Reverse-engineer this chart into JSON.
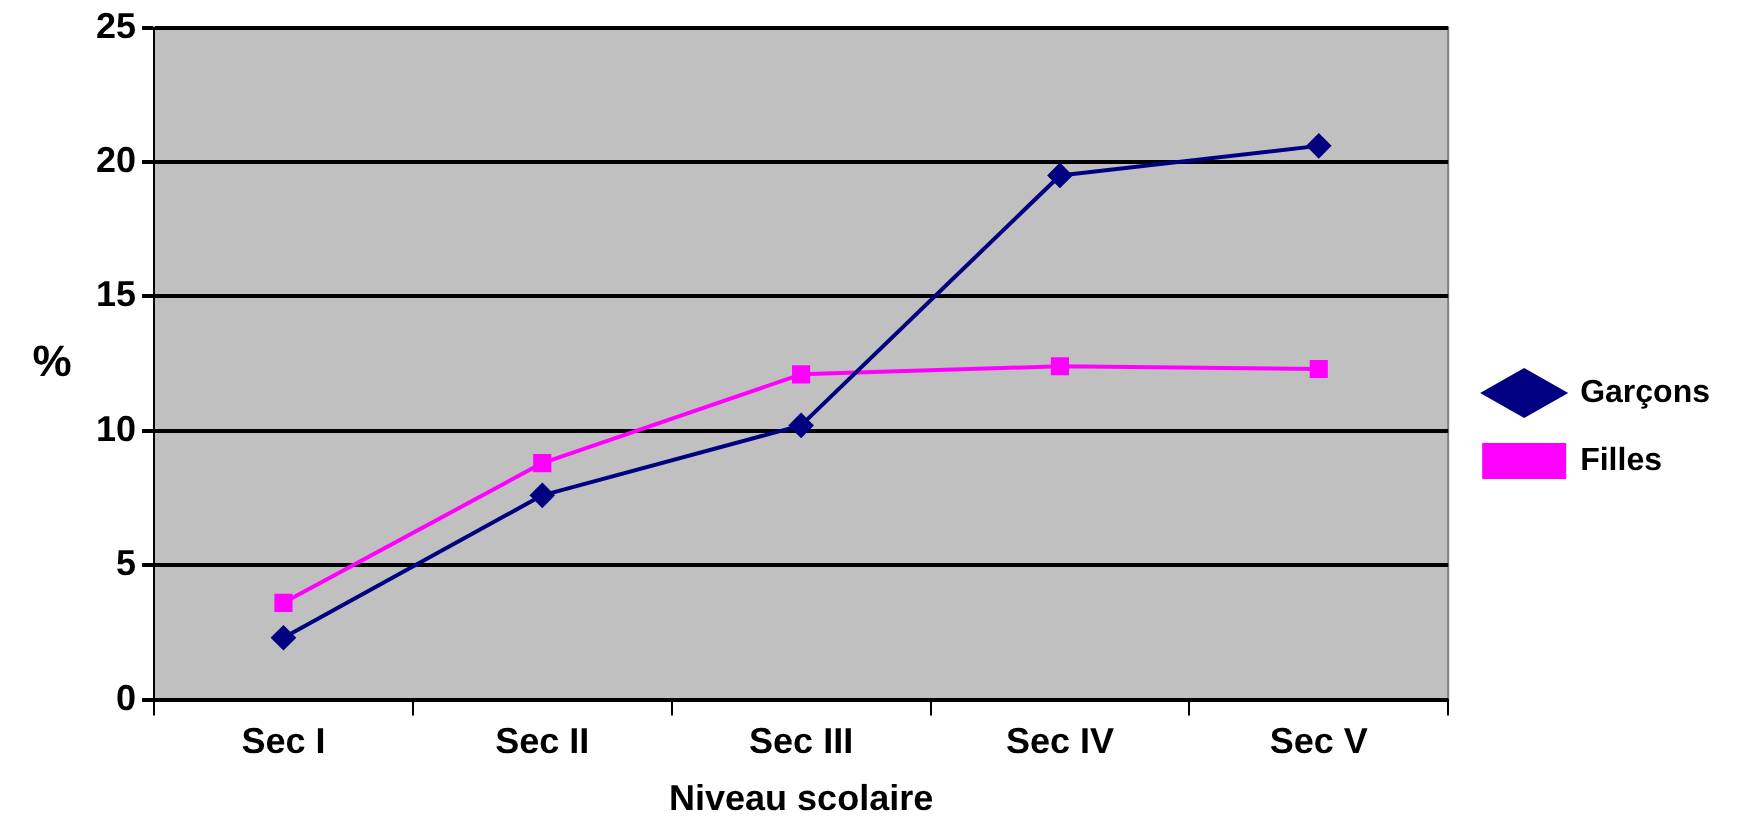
{
  "chart_data": {
    "type": "line",
    "xlabel": "Niveau scolaire",
    "ylabel": "%",
    "categories": [
      "Sec I",
      "Sec II",
      "Sec III",
      "Sec IV",
      "Sec V"
    ],
    "series": [
      {
        "name": "Garçons",
        "color": "#000080",
        "marker": "diamond",
        "values": [
          2.3,
          7.6,
          10.2,
          19.5,
          20.6
        ]
      },
      {
        "name": "Filles",
        "color": "#ff00ff",
        "marker": "square",
        "values": [
          3.6,
          8.8,
          12.1,
          12.4,
          12.3
        ]
      }
    ],
    "ylim": [
      0,
      25
    ],
    "yticks": [
      0,
      5,
      10,
      15,
      20,
      25
    ],
    "grid": "y",
    "legend": "right",
    "line_style": "solid"
  }
}
